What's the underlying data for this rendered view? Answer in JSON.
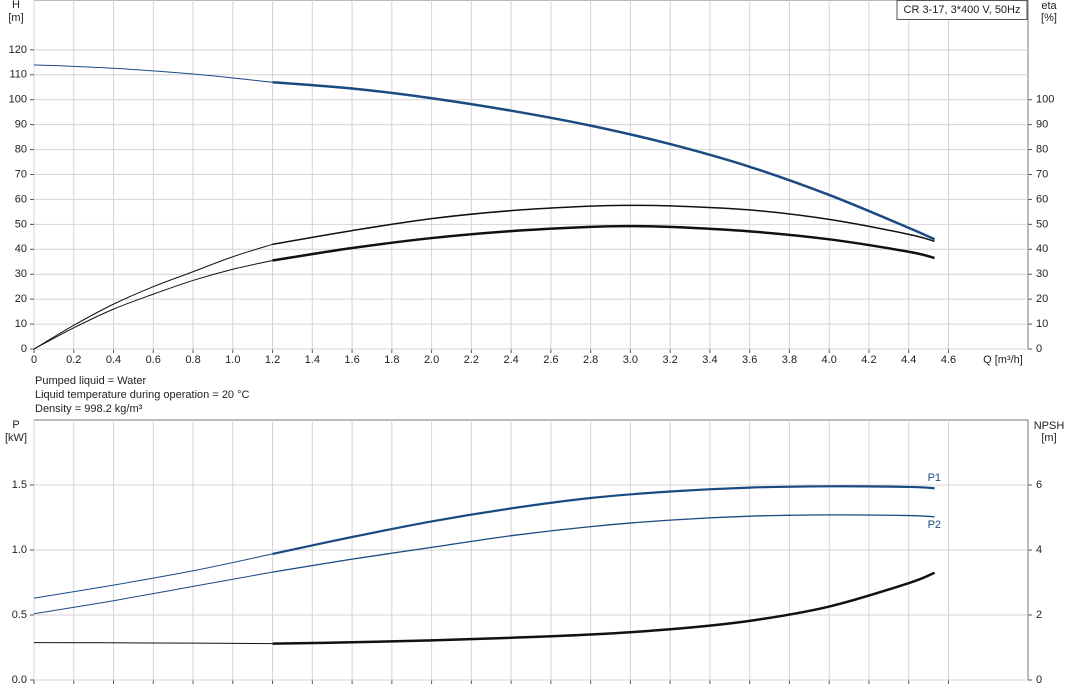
{
  "charts": [
    {
      "type": "line",
      "subtitle": "CR 3-17, 3*400 V, 50Hz",
      "ylabel": "H",
      "yunit": "[m]",
      "y2label": "eta",
      "y2unit": "[%]",
      "xlabel": "Q [m³/h]",
      "notes": [
        "Pumped liquid = Water",
        "Liquid temperature during operation = 20 °C",
        "Density = 998.2 kg/m³"
      ],
      "xlim": [
        0,
        5
      ],
      "xticks": [
        0,
        0.2,
        0.4,
        0.6,
        0.8,
        {
          "value": 1,
          "label": "1.0"
        },
        1.2,
        1.4,
        1.6,
        1.8,
        {
          "value": 2,
          "label": "2.0"
        },
        2.2,
        2.4,
        2.6,
        2.8,
        {
          "value": 3,
          "label": "3.0"
        },
        3.2,
        3.4,
        3.6,
        3.8,
        {
          "value": 4,
          "label": "4.0"
        },
        4.2,
        4.4,
        4.6
      ],
      "show_xtick_labels": true,
      "grid": true,
      "ylim": [
        0,
        140
      ],
      "yticks": [
        0,
        10,
        20,
        30,
        40,
        50,
        60,
        70,
        80,
        90,
        100,
        110,
        120
      ],
      "y2lim": [
        0,
        140
      ],
      "y2ticks": [
        0,
        10,
        20,
        30,
        40,
        50,
        60,
        70,
        80,
        90,
        100
      ],
      "series": [
        {
          "color": "#1a4a82",
          "width": 1,
          "x": [
            0,
            0.4,
            0.8,
            1.2
          ],
          "values": [
            114,
            112.6,
            110.3,
            107
          ]
        },
        {
          "color": "#1a4a82",
          "width": 2.5,
          "x": [
            1.2,
            1.6,
            2.0,
            2.4,
            2.8,
            3.2,
            3.6,
            4.0,
            4.4,
            4.53
          ],
          "values": [
            107,
            104.5,
            100.6,
            95.6,
            89.6,
            82.2,
            73.1,
            61.8,
            48.6,
            44
          ]
        },
        {
          "color": "#111111",
          "width": 1,
          "axis": "y2",
          "x": [
            0,
            0.2,
            0.4,
            0.6,
            0.8,
            1.0,
            1.2
          ],
          "values": [
            0,
            9.5,
            18,
            25,
            31,
            37,
            42
          ]
        },
        {
          "color": "#111111",
          "width": 1.5,
          "axis": "y2",
          "x": [
            1.2,
            1.6,
            2.0,
            2.4,
            2.8,
            3.0,
            3.2,
            3.6,
            4.0,
            4.4,
            4.53
          ],
          "values": [
            42,
            47.5,
            52.3,
            55.5,
            57.3,
            57.6,
            57.4,
            55.8,
            52,
            46,
            43.2
          ]
        },
        {
          "color": "#111111",
          "width": 1,
          "axis": "y2",
          "x": [
            0,
            0.2,
            0.4,
            0.6,
            0.8,
            1.0,
            1.2
          ],
          "values": [
            0,
            8.5,
            16,
            22,
            27.5,
            32,
            35.5
          ]
        },
        {
          "color": "#111111",
          "width": 2.5,
          "axis": "y2",
          "x": [
            1.2,
            1.6,
            2.0,
            2.4,
            2.8,
            3.0,
            3.2,
            3.6,
            4.0,
            4.4,
            4.53
          ],
          "values": [
            35.5,
            40.5,
            44.5,
            47.3,
            49,
            49.3,
            49,
            47.2,
            44,
            39,
            36.5
          ]
        }
      ]
    },
    {
      "type": "line",
      "ylabel": "P",
      "yunit": "[kW]",
      "y2label": "NPSH",
      "y2unit": "[m]",
      "xlim": [
        0,
        5
      ],
      "xticks": [
        0,
        0.2,
        0.4,
        0.6,
        0.8,
        1,
        1.2,
        1.4,
        1.6,
        1.8,
        2,
        2.2,
        2.4,
        2.6,
        2.8,
        3,
        3.2,
        3.4,
        3.6,
        3.8,
        4,
        4.2,
        4.4,
        4.6
      ],
      "show_xtick_labels": false,
      "grid": true,
      "ylim": [
        0,
        2
      ],
      "yticks": [
        {
          "value": 0,
          "label": "0.0"
        },
        0.5,
        {
          "value": 1,
          "label": "1.0"
        },
        1.5
      ],
      "y2lim": [
        0,
        8
      ],
      "y2ticks": [
        0,
        2,
        4,
        6
      ],
      "series": [
        {
          "color": "#1a4a82",
          "width": 1,
          "x": [
            0,
            0.4,
            0.8,
            1.2
          ],
          "values": [
            0.63,
            0.73,
            0.84,
            0.97
          ]
        },
        {
          "name": "P1",
          "color": "#1a4a82",
          "width": 2.2,
          "x": [
            1.2,
            1.6,
            2.0,
            2.4,
            2.8,
            3.2,
            3.6,
            4.0,
            4.4,
            4.53
          ],
          "values": [
            0.97,
            1.1,
            1.22,
            1.32,
            1.4,
            1.45,
            1.48,
            1.49,
            1.485,
            1.475
          ]
        },
        {
          "color": "#1a4a82",
          "width": 1,
          "x": [
            0,
            0.4,
            0.8,
            1.2
          ],
          "values": [
            0.51,
            0.61,
            0.72,
            0.83
          ]
        },
        {
          "name": "P2",
          "color": "#1a4a82",
          "width": 1.3,
          "x": [
            1.2,
            1.6,
            2.0,
            2.4,
            2.8,
            3.2,
            3.6,
            4.0,
            4.4,
            4.53
          ],
          "values": [
            0.83,
            0.93,
            1.02,
            1.11,
            1.18,
            1.23,
            1.26,
            1.27,
            1.265,
            1.255
          ]
        },
        {
          "color": "#111111",
          "width": 1,
          "axis": "y2",
          "x": [
            0,
            0.6,
            1.2
          ],
          "values": [
            1.15,
            1.14,
            1.12
          ]
        },
        {
          "color": "#111111",
          "width": 2.5,
          "axis": "y2",
          "x": [
            1.2,
            1.6,
            2.0,
            2.4,
            2.8,
            3.2,
            3.6,
            4.0,
            4.4,
            4.53
          ],
          "values": [
            1.12,
            1.16,
            1.22,
            1.3,
            1.4,
            1.56,
            1.82,
            2.26,
            2.98,
            3.3
          ]
        }
      ]
    }
  ]
}
